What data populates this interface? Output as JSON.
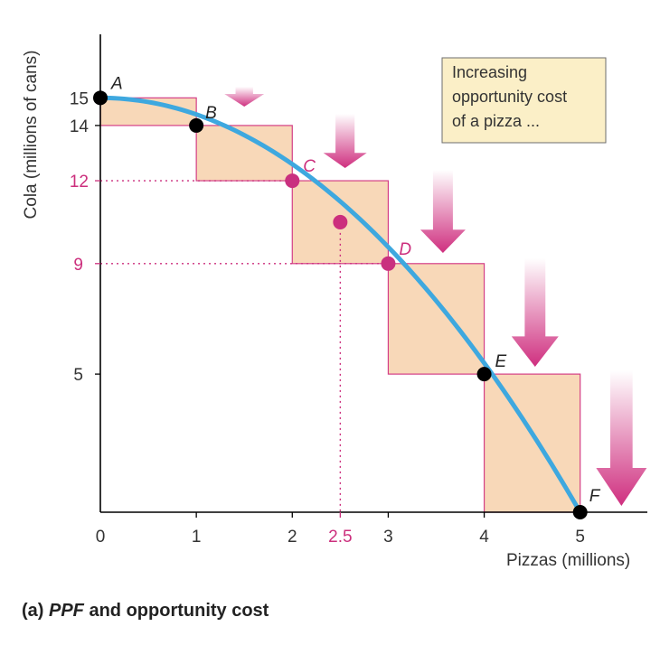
{
  "chart_data": {
    "type": "line",
    "xlabel": "Pizzas (millions)",
    "ylabel": "Cola (millions of cans)",
    "xlim": [
      0,
      5.7
    ],
    "ylim": [
      0,
      17.3
    ],
    "x_ticks": [
      "0",
      "1",
      "2",
      "3",
      "4",
      "5"
    ],
    "y_ticks": [
      "5",
      "9",
      "12",
      "14",
      "15"
    ],
    "highlight_ticks": {
      "x": [
        "2.5"
      ],
      "y": [
        "9",
        "12"
      ]
    },
    "points": [
      {
        "label": "A",
        "x": 0,
        "y": 15,
        "color": "#000000"
      },
      {
        "label": "B",
        "x": 1,
        "y": 14,
        "color": "#000000"
      },
      {
        "label": "C",
        "x": 2,
        "y": 12,
        "color": "#c9307f"
      },
      {
        "label": "D",
        "x": 3,
        "y": 9,
        "color": "#c9307f"
      },
      {
        "label": "E",
        "x": 4,
        "y": 5,
        "color": "#000000"
      },
      {
        "label": "F",
        "x": 5,
        "y": 0,
        "color": "#000000"
      }
    ],
    "midpoint": {
      "x": 2.5,
      "y": 10.5
    },
    "callout": {
      "lines": [
        "Increasing",
        "opportunity cost",
        "of a pizza ..."
      ]
    },
    "caption": {
      "prefix": "(a) ",
      "italic": "PPF",
      "rest": " and opportunity cost"
    },
    "colors": {
      "curve": "#3ea8df",
      "box_fill": "#f8d8b8",
      "box_stroke": "#d43f86",
      "callout_fill": "#fbefc7",
      "pink": "#cc2f7d"
    }
  }
}
